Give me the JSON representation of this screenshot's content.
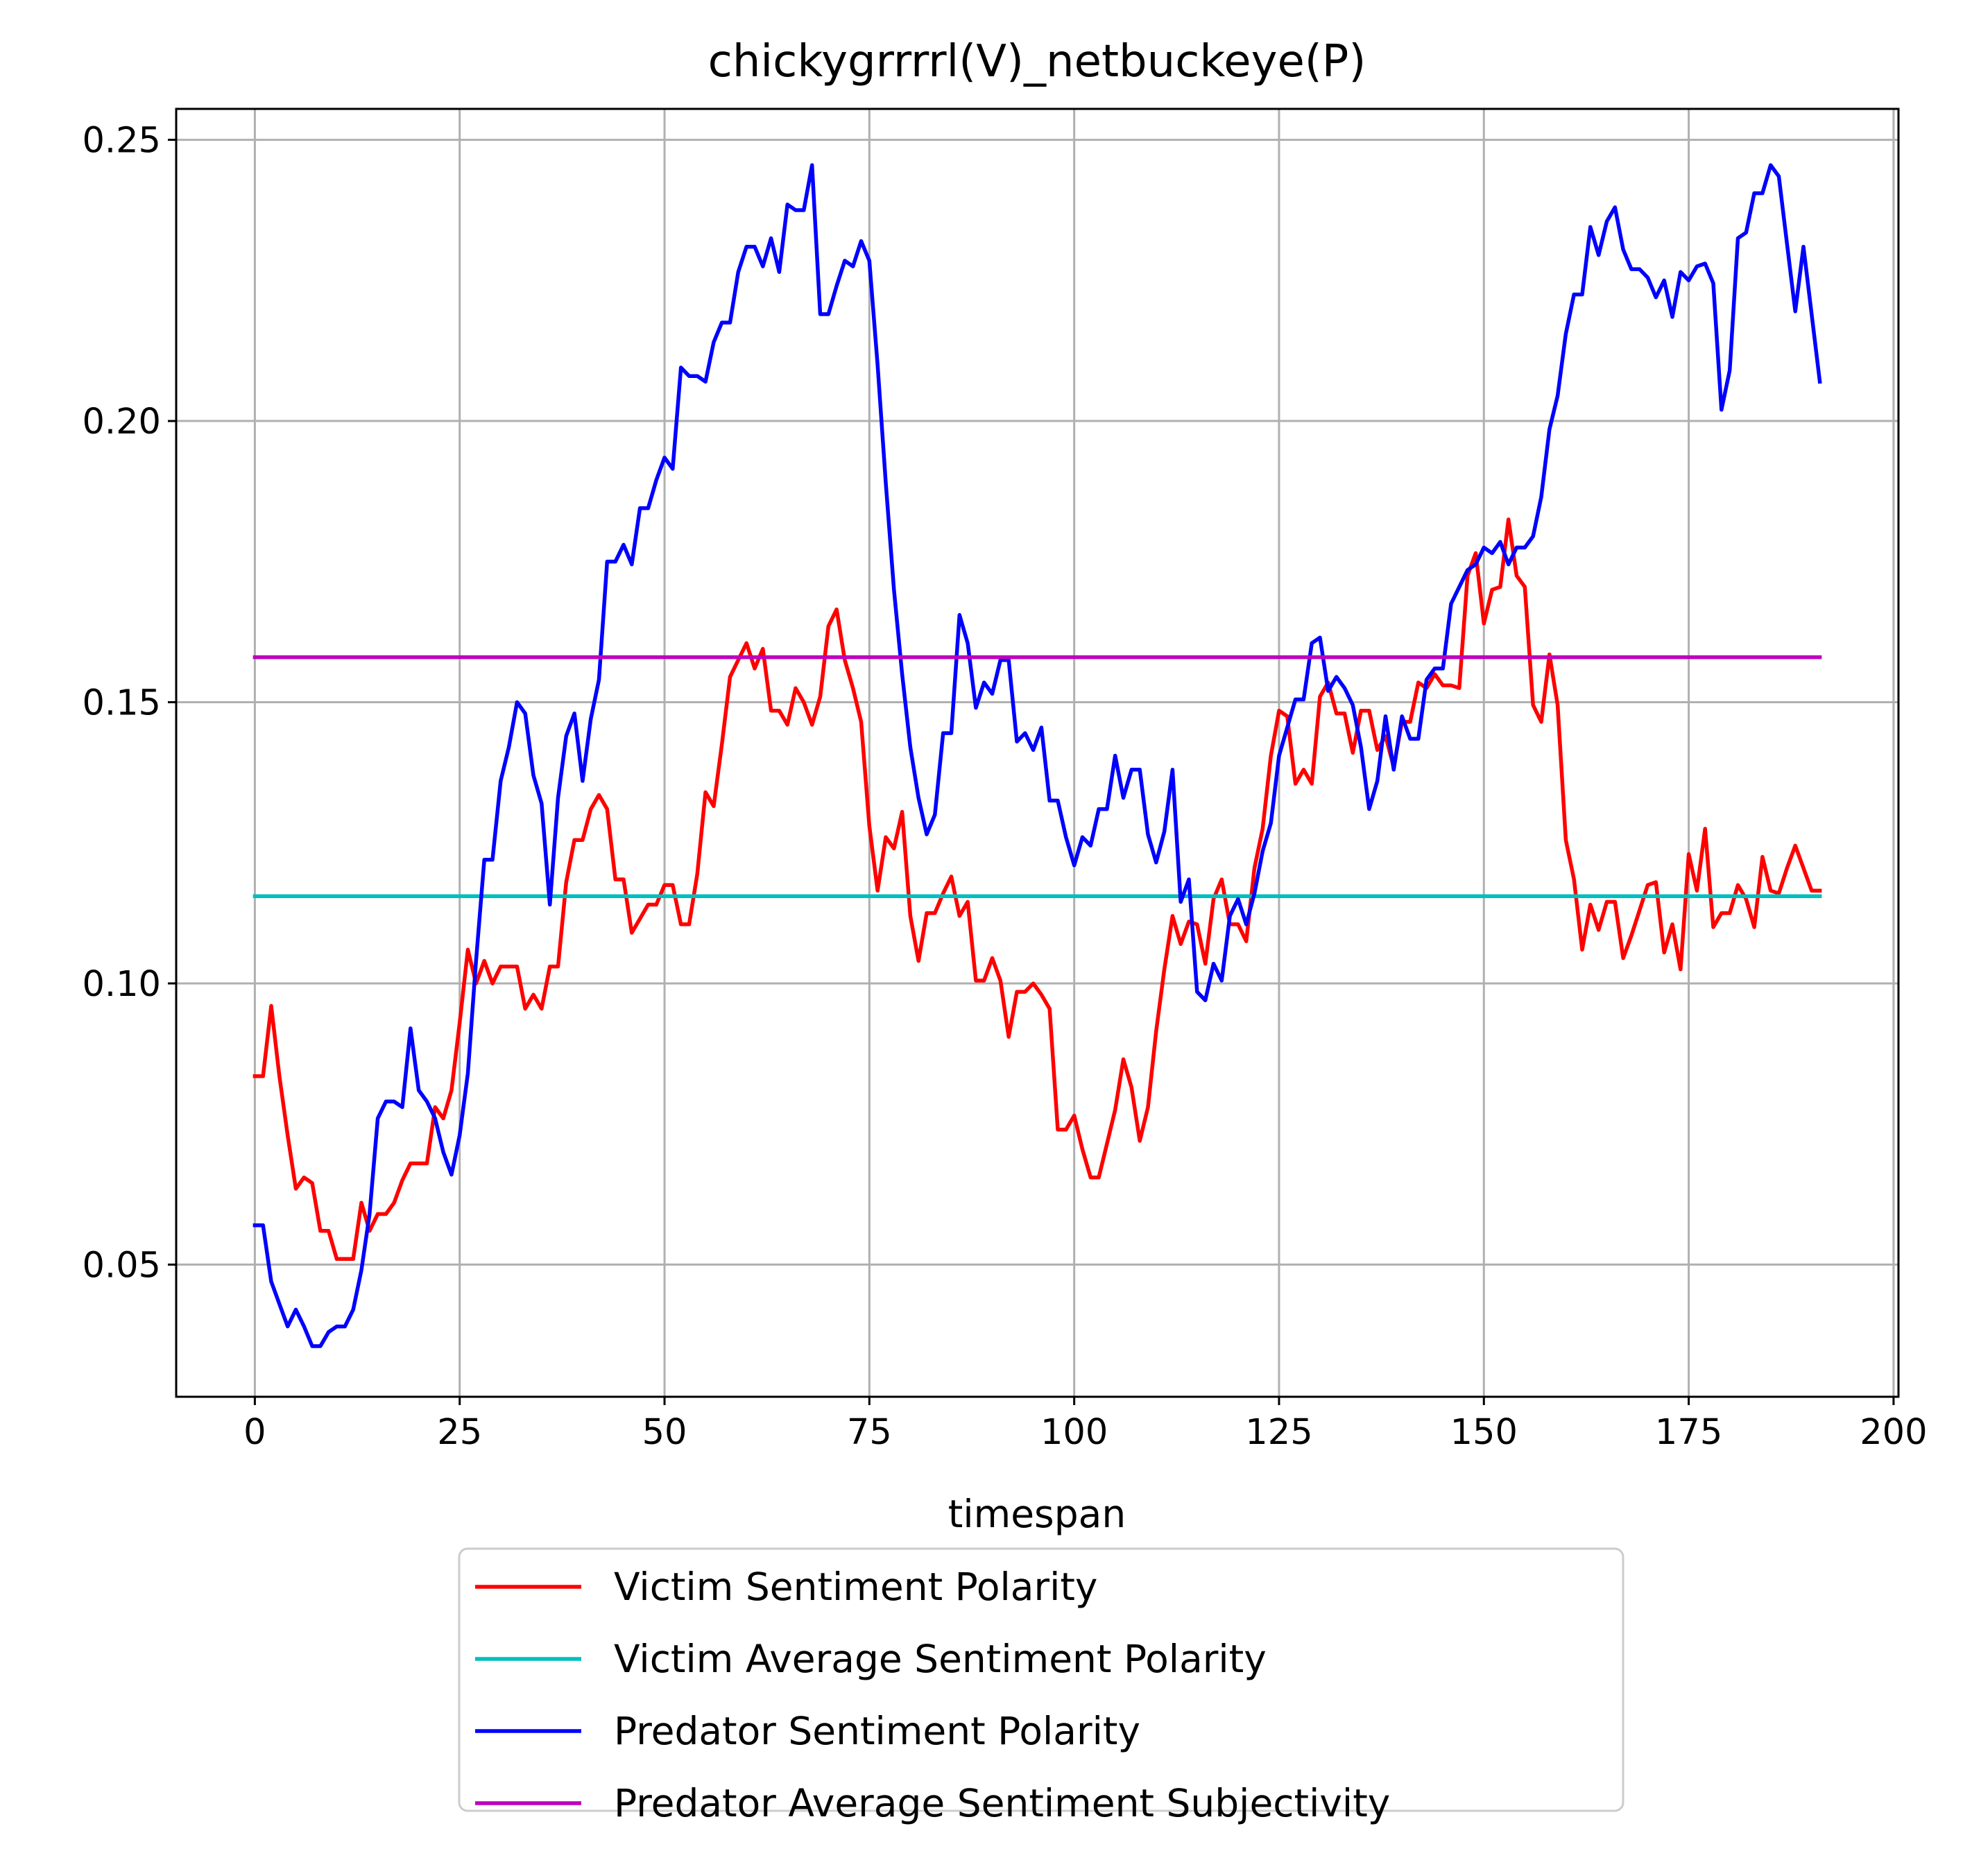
{
  "chart_data": {
    "type": "line",
    "title": "chickygrrrrl(V)_netbuckeye(P)",
    "xlabel": "timespan",
    "ylabel": "",
    "xlim": [
      -9.6,
      200.6
    ],
    "ylim": [
      0.0265,
      0.2555
    ],
    "xticks": [
      0,
      25,
      50,
      75,
      100,
      125,
      150,
      175,
      200
    ],
    "yticks": [
      0.05,
      0.1,
      0.15,
      0.2,
      0.25
    ],
    "xtick_labels": [
      "0",
      "25",
      "50",
      "75",
      "100",
      "125",
      "150",
      "175",
      "200"
    ],
    "ytick_labels": [
      "0.05",
      "0.10",
      "0.15",
      "0.20",
      "0.25"
    ],
    "grid": true,
    "legend_position": "below plot",
    "series": [
      {
        "name": "Victim Sentiment Polarity",
        "color": "#ff0000",
        "x": [
          0,
          1,
          2,
          3,
          4,
          5,
          6,
          7,
          8,
          9,
          10,
          11,
          12,
          13,
          14,
          15,
          16,
          17,
          18,
          19,
          20,
          21,
          22,
          23,
          24,
          25,
          26,
          27,
          28,
          29,
          30,
          31,
          32,
          33,
          34,
          35,
          36,
          37,
          38,
          39,
          40,
          41,
          42,
          43,
          44,
          45,
          46,
          47,
          48,
          49,
          50,
          51,
          52,
          53,
          54,
          55,
          56,
          57,
          58,
          59,
          60,
          61,
          62,
          63,
          64,
          65,
          66,
          67,
          68,
          69,
          70,
          71,
          72,
          73,
          74,
          75,
          76,
          77,
          78,
          79,
          80,
          81,
          82,
          83,
          84,
          85,
          86,
          87,
          88,
          89,
          90,
          91,
          92,
          93,
          94,
          95,
          96,
          97,
          98,
          99,
          100,
          101,
          102,
          103,
          104,
          105,
          106,
          107,
          108,
          109,
          110,
          111,
          112,
          113,
          114,
          115,
          116,
          117,
          118,
          119,
          120,
          121,
          122,
          123,
          124,
          125,
          126,
          127,
          128,
          129,
          130,
          131,
          132,
          133,
          134,
          135,
          136,
          137,
          138,
          139,
          140,
          141,
          142,
          143,
          144,
          145,
          146,
          147,
          148,
          149,
          150,
          151,
          152,
          153,
          154,
          155,
          156,
          157,
          158,
          159,
          160,
          161,
          162,
          163,
          164,
          165,
          166,
          167,
          168,
          169,
          170,
          171,
          172,
          173,
          174,
          175,
          176,
          177,
          178,
          179,
          180,
          181,
          182,
          183,
          184,
          185,
          186,
          187,
          188,
          189,
          190,
          191
        ],
        "values": [
          0.0835,
          0.0835,
          0.096,
          0.0835,
          0.073,
          0.0635,
          0.0655,
          0.0645,
          0.056,
          0.056,
          0.051,
          0.051,
          0.051,
          0.061,
          0.056,
          0.059,
          0.059,
          0.061,
          0.065,
          0.068,
          0.068,
          0.068,
          0.078,
          0.076,
          0.081,
          0.093,
          0.106,
          0.1,
          0.104,
          0.1,
          0.103,
          0.103,
          0.103,
          0.0955,
          0.098,
          0.0955,
          0.103,
          0.103,
          0.118,
          0.1255,
          0.1255,
          0.131,
          0.1335,
          0.131,
          0.1185,
          0.1185,
          0.109,
          0.1115,
          0.114,
          0.114,
          0.1175,
          0.1175,
          0.1105,
          0.1105,
          0.1195,
          0.134,
          0.1315,
          0.1425,
          0.1545,
          0.1575,
          0.1605,
          0.156,
          0.1595,
          0.1485,
          0.1485,
          0.146,
          0.1525,
          0.15,
          0.146,
          0.151,
          0.1635,
          0.1665,
          0.1575,
          0.1525,
          0.1465,
          0.128,
          0.1165,
          0.126,
          0.124,
          0.1305,
          0.112,
          0.104,
          0.1125,
          0.1125,
          0.116,
          0.119,
          0.112,
          0.1145,
          0.1005,
          0.1005,
          0.1045,
          0.1005,
          0.0905,
          0.0985,
          0.0985,
          0.1,
          0.098,
          0.0955,
          0.074,
          0.074,
          0.0765,
          0.0705,
          0.0655,
          0.0655,
          0.0715,
          0.0775,
          0.0865,
          0.0815,
          0.072,
          0.078,
          0.0915,
          0.1025,
          0.112,
          0.107,
          0.111,
          0.1105,
          0.1035,
          0.115,
          0.1185,
          0.1105,
          0.1105,
          0.1075,
          0.1205,
          0.1275,
          0.1405,
          0.1485,
          0.1475,
          0.1355,
          0.138,
          0.1355,
          0.151,
          0.1535,
          0.148,
          0.148,
          0.141,
          0.1485,
          0.1485,
          0.1415,
          0.144,
          0.1385,
          0.1465,
          0.1465,
          0.1535,
          0.1525,
          0.155,
          0.153,
          0.153,
          0.1525,
          0.1725,
          0.1765,
          0.164,
          0.17,
          0.1705,
          0.1825,
          0.1725,
          0.1705,
          0.1495,
          0.1465,
          0.1585,
          0.1495,
          0.1255,
          0.1185,
          0.106,
          0.114,
          0.1095,
          0.1145,
          0.1145,
          0.1045,
          0.1085,
          0.113,
          0.1175,
          0.118,
          0.1055,
          0.1105,
          0.1025,
          0.123,
          0.1165,
          0.1275,
          0.11,
          0.1125,
          0.1125,
          0.1175,
          0.115,
          0.11,
          0.1225,
          0.1165,
          0.116,
          0.1205,
          0.1245,
          0.1205,
          0.1165,
          0.1165
        ]
      },
      {
        "name": "Victim Average Sentiment Polarity",
        "color": "#00bfbf",
        "x": [
          0,
          191
        ],
        "values": [
          0.1155,
          0.1155
        ]
      },
      {
        "name": "Predator Sentiment Polarity",
        "color": "#0000ff",
        "x": [
          0,
          1,
          2,
          3,
          4,
          5,
          6,
          7,
          8,
          9,
          10,
          11,
          12,
          13,
          14,
          15,
          16,
          17,
          18,
          19,
          20,
          21,
          22,
          23,
          24,
          25,
          26,
          27,
          28,
          29,
          30,
          31,
          32,
          33,
          34,
          35,
          36,
          37,
          38,
          39,
          40,
          41,
          42,
          43,
          44,
          45,
          46,
          47,
          48,
          49,
          50,
          51,
          52,
          53,
          54,
          55,
          56,
          57,
          58,
          59,
          60,
          61,
          62,
          63,
          64,
          65,
          66,
          67,
          68,
          69,
          70,
          71,
          72,
          73,
          74,
          75,
          76,
          77,
          78,
          79,
          80,
          81,
          82,
          83,
          84,
          85,
          86,
          87,
          88,
          89,
          90,
          91,
          92,
          93,
          94,
          95,
          96,
          97,
          98,
          99,
          100,
          101,
          102,
          103,
          104,
          105,
          106,
          107,
          108,
          109,
          110,
          111,
          112,
          113,
          114,
          115,
          116,
          117,
          118,
          119,
          120,
          121,
          122,
          123,
          124,
          125,
          126,
          127,
          128,
          129,
          130,
          131,
          132,
          133,
          134,
          135,
          136,
          137,
          138,
          139,
          140,
          141,
          142,
          143,
          144,
          145,
          146,
          147,
          148,
          149,
          150,
          151,
          152,
          153,
          154,
          155,
          156,
          157,
          158,
          159,
          160,
          161,
          162,
          163,
          164,
          165,
          166,
          167,
          168,
          169,
          170,
          171,
          172,
          173,
          174,
          175,
          176,
          177,
          178,
          179,
          180,
          181,
          182,
          183,
          184,
          185,
          186,
          187,
          188,
          189,
          190,
          191
        ],
        "values": [
          0.057,
          0.057,
          0.047,
          0.043,
          0.039,
          0.042,
          0.039,
          0.0355,
          0.0355,
          0.038,
          0.039,
          0.039,
          0.042,
          0.049,
          0.059,
          0.076,
          0.079,
          0.079,
          0.078,
          0.092,
          0.081,
          0.079,
          0.076,
          0.07,
          0.066,
          0.073,
          0.084,
          0.104,
          0.122,
          0.122,
          0.136,
          0.142,
          0.15,
          0.148,
          0.137,
          0.132,
          0.114,
          0.133,
          0.144,
          0.148,
          0.136,
          0.147,
          0.154,
          0.175,
          0.175,
          0.178,
          0.1745,
          0.1845,
          0.1845,
          0.1895,
          0.1935,
          0.1915,
          0.2095,
          0.208,
          0.208,
          0.207,
          0.214,
          0.2175,
          0.2175,
          0.2265,
          0.231,
          0.231,
          0.2275,
          0.2325,
          0.2265,
          0.2385,
          0.2375,
          0.2375,
          0.2455,
          0.219,
          0.219,
          0.224,
          0.2285,
          0.2275,
          0.232,
          0.2285,
          0.21,
          0.189,
          0.17,
          0.155,
          0.142,
          0.133,
          0.1265,
          0.13,
          0.1445,
          0.1445,
          0.1655,
          0.1605,
          0.149,
          0.1535,
          0.1515,
          0.1575,
          0.1575,
          0.143,
          0.1445,
          0.1415,
          0.1455,
          0.1325,
          0.1325,
          0.126,
          0.121,
          0.126,
          0.1245,
          0.131,
          0.131,
          0.1405,
          0.133,
          0.138,
          0.138,
          0.1265,
          0.1215,
          0.127,
          0.138,
          0.1145,
          0.1185,
          0.0985,
          0.097,
          0.1035,
          0.1005,
          0.112,
          0.115,
          0.1105,
          0.116,
          0.1235,
          0.1285,
          0.1405,
          0.1455,
          0.1505,
          0.1505,
          0.1605,
          0.1615,
          0.152,
          0.1545,
          0.1525,
          0.1495,
          0.142,
          0.131,
          0.136,
          0.1475,
          0.138,
          0.1475,
          0.1435,
          0.1435,
          0.154,
          0.156,
          0.156,
          0.1675,
          0.1705,
          0.1735,
          0.1745,
          0.1775,
          0.1765,
          0.1785,
          0.1745,
          0.1775,
          0.1775,
          0.1795,
          0.1865,
          0.1985,
          0.2045,
          0.2155,
          0.2225,
          0.2225,
          0.2345,
          0.2295,
          0.2355,
          0.238,
          0.2305,
          0.227,
          0.227,
          0.2255,
          0.222,
          0.225,
          0.2185,
          0.2265,
          0.225,
          0.2275,
          0.228,
          0.2245,
          0.202,
          0.209,
          0.2325,
          0.2335,
          0.2405,
          0.2405,
          0.2455,
          0.2435,
          0.2315,
          0.2195,
          0.231,
          0.219,
          0.207
        ]
      },
      {
        "name": "Predator Average Sentiment Subjectivity",
        "color": "#bf00bf",
        "x": [
          0,
          191
        ],
        "values": [
          0.158,
          0.158
        ]
      }
    ]
  }
}
